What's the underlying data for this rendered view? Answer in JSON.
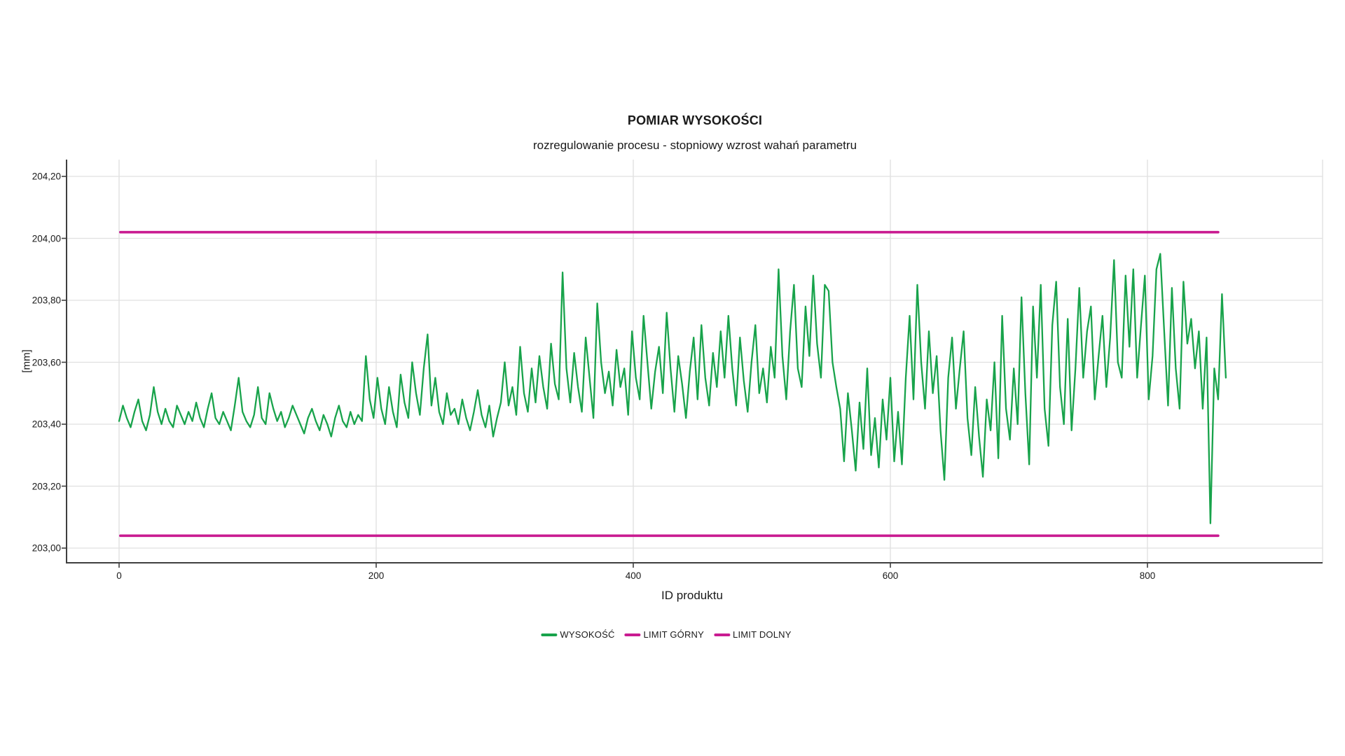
{
  "chart_data": {
    "type": "line",
    "title": "POMIAR WYSOKOŚCI",
    "subtitle": "rozregulowanie procesu - stopniowy wzrost wahań parametru",
    "xlabel": "ID produktu",
    "ylabel": "[mm]",
    "grid": true,
    "legend_position": "bottom-center",
    "x_ticks": {
      "values": [
        0,
        200,
        400,
        600,
        800
      ],
      "labels": [
        "0",
        "200",
        "400",
        "600",
        "800"
      ]
    },
    "y_ticks": {
      "values": [
        204.2,
        204.0,
        203.8,
        203.6,
        203.4,
        203.2,
        203.0
      ],
      "labels": [
        "204,20",
        "204,00",
        "203,80",
        "203,60",
        "203,40",
        "203,20",
        "203,00"
      ]
    },
    "ylim": [
      202.95,
      204.25
    ],
    "xlim": [
      -40,
      935
    ],
    "colors": {
      "series": "#18A34B",
      "limits": "#C91B91",
      "grid": "#E0E0E0",
      "axis": "#3F3F3F",
      "text": "#1A1A1A"
    },
    "limits": [
      {
        "name": "LIMIT GÓRNY",
        "value": 204.02,
        "x_start": 1,
        "x_end": 855,
        "color": "#C91B91"
      },
      {
        "name": "LIMIT DOLNY",
        "value": 203.04,
        "x_start": 1,
        "x_end": 855,
        "color": "#C91B91"
      }
    ],
    "legend": [
      {
        "label": "WYSOKOŚĆ",
        "color": "#18A34B"
      },
      {
        "label": "LIMIT GÓRNY",
        "color": "#C91B91"
      },
      {
        "label": "LIMIT DOLNY",
        "color": "#C91B91"
      }
    ],
    "series": [
      {
        "name": "WYSOKOŚĆ",
        "color": "#18A34B",
        "x_start": 0,
        "x_step": 3,
        "values": [
          203.41,
          203.46,
          203.42,
          203.39,
          203.44,
          203.48,
          203.41,
          203.38,
          203.43,
          203.52,
          203.44,
          203.4,
          203.45,
          203.41,
          203.39,
          203.46,
          203.43,
          203.4,
          203.44,
          203.41,
          203.47,
          203.42,
          203.39,
          203.45,
          203.5,
          203.42,
          203.4,
          203.44,
          203.41,
          203.38,
          203.46,
          203.55,
          203.44,
          203.41,
          203.39,
          203.43,
          203.52,
          203.42,
          203.4,
          203.5,
          203.45,
          203.41,
          203.44,
          203.39,
          203.42,
          203.46,
          203.43,
          203.4,
          203.37,
          203.42,
          203.45,
          203.41,
          203.38,
          203.43,
          203.4,
          203.36,
          203.42,
          203.46,
          203.41,
          203.39,
          203.44,
          203.4,
          203.43,
          203.41,
          203.62,
          203.48,
          203.42,
          203.55,
          203.45,
          203.4,
          203.52,
          203.44,
          203.39,
          203.56,
          203.47,
          203.42,
          203.6,
          203.5,
          203.43,
          203.58,
          203.69,
          203.46,
          203.55,
          203.44,
          203.4,
          203.5,
          203.43,
          203.45,
          203.4,
          203.48,
          203.42,
          203.38,
          203.44,
          203.51,
          203.43,
          203.39,
          203.46,
          203.36,
          203.42,
          203.47,
          203.6,
          203.46,
          203.52,
          203.43,
          203.65,
          203.5,
          203.44,
          203.58,
          203.47,
          203.62,
          203.52,
          203.45,
          203.66,
          203.53,
          203.48,
          203.89,
          203.58,
          203.47,
          203.63,
          203.52,
          203.44,
          203.68,
          203.55,
          203.42,
          203.79,
          203.6,
          203.5,
          203.57,
          203.46,
          203.64,
          203.52,
          203.58,
          203.43,
          203.7,
          203.55,
          203.48,
          203.75,
          203.6,
          203.45,
          203.57,
          203.65,
          203.5,
          203.76,
          203.58,
          203.44,
          203.62,
          203.53,
          203.42,
          203.57,
          203.68,
          203.48,
          203.72,
          203.55,
          203.46,
          203.63,
          203.52,
          203.7,
          203.55,
          203.75,
          203.58,
          203.46,
          203.68,
          203.54,
          203.44,
          203.6,
          203.72,
          203.5,
          203.58,
          203.47,
          203.65,
          203.55,
          203.9,
          203.62,
          203.48,
          203.7,
          203.85,
          203.58,
          203.52,
          203.78,
          203.62,
          203.88,
          203.66,
          203.55,
          203.85,
          203.83,
          203.6,
          203.52,
          203.45,
          203.28,
          203.5,
          203.38,
          203.25,
          203.47,
          203.32,
          203.58,
          203.3,
          203.42,
          203.26,
          203.48,
          203.35,
          203.55,
          203.28,
          203.44,
          203.27,
          203.55,
          203.75,
          203.48,
          203.85,
          203.6,
          203.45,
          203.7,
          203.5,
          203.62,
          203.38,
          203.22,
          203.55,
          203.68,
          203.45,
          203.58,
          203.7,
          203.42,
          203.3,
          203.52,
          203.36,
          203.23,
          203.48,
          203.38,
          203.6,
          203.29,
          203.75,
          203.45,
          203.35,
          203.58,
          203.4,
          203.81,
          203.5,
          203.27,
          203.78,
          203.55,
          203.85,
          203.45,
          203.33,
          203.72,
          203.86,
          203.52,
          203.4,
          203.74,
          203.38,
          203.58,
          203.84,
          203.55,
          203.7,
          203.78,
          203.48,
          203.62,
          203.75,
          203.52,
          203.68,
          203.93,
          203.6,
          203.55,
          203.88,
          203.65,
          203.9,
          203.55,
          203.72,
          203.88,
          203.48,
          203.62,
          203.9,
          203.95,
          203.7,
          203.46,
          203.84,
          203.58,
          203.45,
          203.86,
          203.66,
          203.74,
          203.58,
          203.7,
          203.45,
          203.68,
          203.08,
          203.58,
          203.48,
          203.82,
          203.55
        ]
      }
    ]
  }
}
